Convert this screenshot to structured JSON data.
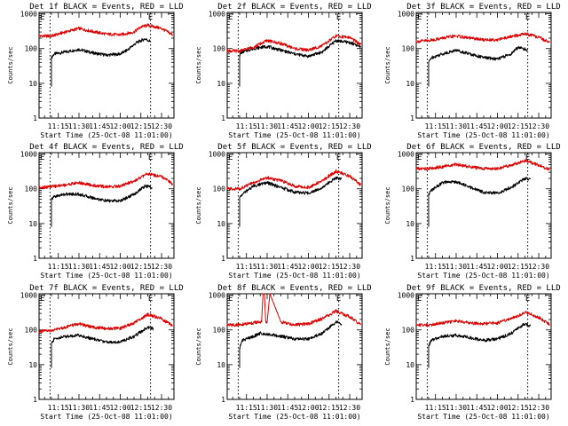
{
  "chart_data": [
    {
      "type": "line",
      "title": "Det 1f BLACK = Events, RED = LLD",
      "xlabel": "Start Time (25-Oct-08 11:01:00)",
      "ylabel": "Counts/sec",
      "x_ticklabels": [
        "11:15",
        "11:30",
        "11:45",
        "12:00",
        "12:15",
        "12:30"
      ],
      "y_ticklabels": [
        "1",
        "10",
        "100",
        "1000"
      ],
      "ylog": true,
      "ylim": [
        1,
        1100
      ],
      "xlim": [
        "11:01",
        "12:39"
      ],
      "vlines": [
        "11:09",
        "12:22"
      ],
      "markers": [
        "E",
        "E"
      ],
      "colors": {
        "events": "#000000",
        "lld": "#e00000"
      },
      "series": [
        {
          "key": "events",
          "x": [
            "11:10",
            "11:12",
            "11:20",
            "11:30",
            "11:40",
            "11:50",
            "12:00",
            "12:05",
            "12:12",
            "12:18",
            "12:22"
          ],
          "values": [
            55,
            70,
            80,
            95,
            75,
            65,
            70,
            90,
            150,
            190,
            160
          ]
        },
        {
          "key": "lld",
          "x": [
            "11:01",
            "11:10",
            "11:20",
            "11:30",
            "11:40",
            "11:50",
            "12:00",
            "12:10",
            "12:15",
            "12:20",
            "12:30",
            "12:38"
          ],
          "values": [
            230,
            230,
            300,
            380,
            310,
            260,
            250,
            300,
            420,
            470,
            380,
            250
          ]
        }
      ]
    },
    {
      "type": "line",
      "title": "Det 2f BLACK = Events, RED = LLD",
      "xlabel": "Start Time (25-Oct-08 11:01:00)",
      "ylabel": "Counts/sec",
      "x_ticklabels": [
        "11:15",
        "11:30",
        "11:45",
        "12:00",
        "12:15",
        "12:30"
      ],
      "y_ticklabels": [
        "1",
        "10",
        "100",
        "1000"
      ],
      "ylog": true,
      "ylim": [
        1,
        1100
      ],
      "xlim": [
        "11:01",
        "12:39"
      ],
      "vlines": [
        "11:09",
        "12:22"
      ],
      "markers": [
        "E",
        "E"
      ],
      "colors": {
        "events": "#000000",
        "lld": "#e00000"
      },
      "series": [
        {
          "key": "events",
          "x": [
            "11:10",
            "11:12",
            "11:20",
            "11:30",
            "11:40",
            "11:50",
            "12:00",
            "12:10",
            "12:20",
            "12:30",
            "12:38"
          ],
          "values": [
            65,
            80,
            100,
            115,
            90,
            70,
            60,
            80,
            170,
            150,
            110
          ]
        },
        {
          "key": "lld",
          "x": [
            "11:01",
            "11:10",
            "11:20",
            "11:30",
            "11:40",
            "11:50",
            "12:00",
            "12:10",
            "12:20",
            "12:30",
            "12:38"
          ],
          "values": [
            85,
            85,
            110,
            170,
            140,
            100,
            90,
            120,
            230,
            210,
            130
          ]
        }
      ]
    },
    {
      "type": "line",
      "title": "Det 3f BLACK = Events, RED = LLD",
      "xlabel": "Start Time (25-Oct-08 11:01:00)",
      "ylabel": "Counts/sec",
      "x_ticklabels": [
        "11:15",
        "11:30",
        "11:45",
        "12:00",
        "12:15",
        "12:30"
      ],
      "y_ticklabels": [
        "1",
        "10",
        "100",
        "1000"
      ],
      "ylog": true,
      "ylim": [
        1,
        1100
      ],
      "xlim": [
        "11:01",
        "12:39"
      ],
      "vlines": [
        "11:09",
        "12:22"
      ],
      "markers": [
        "E",
        "E"
      ],
      "colors": {
        "events": "#000000",
        "lld": "#e00000"
      },
      "series": [
        {
          "key": "events",
          "x": [
            "11:10",
            "11:12",
            "11:20",
            "11:30",
            "11:40",
            "11:50",
            "12:00",
            "12:10",
            "12:15",
            "12:22"
          ],
          "values": [
            40,
            55,
            70,
            90,
            70,
            55,
            50,
            70,
            110,
            90
          ]
        },
        {
          "key": "lld",
          "x": [
            "11:01",
            "11:10",
            "11:20",
            "11:30",
            "11:40",
            "11:50",
            "12:00",
            "12:10",
            "12:20",
            "12:30",
            "12:38"
          ],
          "values": [
            160,
            170,
            200,
            230,
            200,
            180,
            180,
            220,
            270,
            210,
            150
          ]
        }
      ]
    },
    {
      "type": "line",
      "title": "Det 4f BLACK = Events, RED = LLD",
      "xlabel": "Start Time (25-Oct-08 11:01:00)",
      "ylabel": "Counts/sec",
      "x_ticklabels": [
        "11:15",
        "11:30",
        "11:45",
        "12:00",
        "12:15",
        "12:30"
      ],
      "y_ticklabels": [
        "1",
        "10",
        "100",
        "1000"
      ],
      "ylog": true,
      "ylim": [
        1,
        1100
      ],
      "xlim": [
        "11:01",
        "12:39"
      ],
      "vlines": [
        "11:09",
        "12:22"
      ],
      "markers": [
        "E",
        "E"
      ],
      "colors": {
        "events": "#000000",
        "lld": "#e00000"
      },
      "series": [
        {
          "key": "events",
          "x": [
            "11:10",
            "11:12",
            "11:20",
            "11:30",
            "11:40",
            "11:50",
            "12:00",
            "12:10",
            "12:18",
            "12:23"
          ],
          "values": [
            50,
            60,
            70,
            70,
            55,
            45,
            45,
            70,
            120,
            110
          ]
        },
        {
          "key": "lld",
          "x": [
            "11:01",
            "11:10",
            "11:20",
            "11:30",
            "11:40",
            "11:50",
            "12:00",
            "12:10",
            "12:20",
            "12:30",
            "12:38"
          ],
          "values": [
            110,
            115,
            130,
            150,
            125,
            115,
            120,
            170,
            270,
            220,
            140
          ]
        }
      ]
    },
    {
      "type": "line",
      "title": "Det 5f BLACK = Events, RED = LLD",
      "xlabel": "Start Time (25-Oct-08 11:01:00)",
      "ylabel": "Counts/sec",
      "x_ticklabels": [
        "11:15",
        "11:30",
        "11:45",
        "12:00",
        "12:15",
        "12:30"
      ],
      "y_ticklabels": [
        "1",
        "10",
        "100",
        "1000"
      ],
      "ylog": true,
      "ylim": [
        1,
        1100
      ],
      "xlim": [
        "11:01",
        "12:39"
      ],
      "vlines": [
        "11:09",
        "12:22"
      ],
      "markers": [
        "E",
        "E"
      ],
      "colors": {
        "events": "#000000",
        "lld": "#e00000"
      },
      "series": [
        {
          "key": "events",
          "x": [
            "11:10",
            "11:12",
            "11:20",
            "11:30",
            "11:40",
            "11:50",
            "12:00",
            "12:10",
            "12:20",
            "12:24"
          ],
          "values": [
            55,
            70,
            120,
            150,
            110,
            80,
            75,
            110,
            210,
            190
          ]
        },
        {
          "key": "lld",
          "x": [
            "11:01",
            "11:10",
            "11:20",
            "11:30",
            "11:40",
            "11:50",
            "12:00",
            "12:10",
            "12:20",
            "12:30",
            "12:38"
          ],
          "values": [
            100,
            100,
            150,
            210,
            170,
            120,
            110,
            170,
            320,
            230,
            130
          ]
        }
      ]
    },
    {
      "type": "line",
      "title": "Det 6f BLACK = Events, RED = LLD",
      "xlabel": "Start Time (25-Oct-08 11:01:00)",
      "ylabel": "Counts/sec",
      "x_ticklabels": [
        "11:15",
        "11:30",
        "11:45",
        "12:00",
        "12:15",
        "12:30"
      ],
      "y_ticklabels": [
        "1",
        "10",
        "100",
        "1000"
      ],
      "ylog": true,
      "ylim": [
        1,
        1100
      ],
      "xlim": [
        "11:01",
        "12:39"
      ],
      "vlines": [
        "11:09",
        "12:22"
      ],
      "markers": [
        "E",
        "E"
      ],
      "colors": {
        "events": "#000000",
        "lld": "#e00000"
      },
      "series": [
        {
          "key": "events",
          "x": [
            "11:10",
            "11:12",
            "11:20",
            "11:30",
            "11:40",
            "11:50",
            "12:00",
            "12:10",
            "12:20",
            "12:24"
          ],
          "values": [
            70,
            90,
            150,
            160,
            110,
            80,
            75,
            110,
            200,
            190
          ]
        },
        {
          "key": "lld",
          "x": [
            "11:01",
            "11:10",
            "11:20",
            "11:30",
            "11:40",
            "11:50",
            "12:00",
            "12:10",
            "12:20",
            "12:30",
            "12:38"
          ],
          "values": [
            380,
            380,
            430,
            500,
            430,
            380,
            380,
            480,
            650,
            480,
            350
          ]
        }
      ]
    },
    {
      "type": "line",
      "title": "Det 7f BLACK = Events, RED = LLD",
      "xlabel": "Start Time (25-Oct-08 11:01:00)",
      "ylabel": "Counts/sec",
      "x_ticklabels": [
        "11:15",
        "11:30",
        "11:45",
        "12:00",
        "12:15",
        "12:30"
      ],
      "y_ticklabels": [
        "1",
        "10",
        "100",
        "1000"
      ],
      "ylog": true,
      "ylim": [
        1,
        1100
      ],
      "xlim": [
        "11:01",
        "12:39"
      ],
      "vlines": [
        "11:09",
        "12:22"
      ],
      "markers": [
        "E",
        "E"
      ],
      "colors": {
        "events": "#000000",
        "lld": "#e00000"
      },
      "series": [
        {
          "key": "events",
          "x": [
            "11:10",
            "11:12",
            "11:20",
            "11:30",
            "11:40",
            "11:50",
            "12:00",
            "12:10",
            "12:20",
            "12:24"
          ],
          "values": [
            40,
            55,
            65,
            70,
            55,
            45,
            45,
            65,
            120,
            110
          ]
        },
        {
          "key": "lld",
          "x": [
            "11:01",
            "11:10",
            "11:20",
            "11:30",
            "11:40",
            "11:50",
            "12:00",
            "12:10",
            "12:20",
            "12:30",
            "12:38"
          ],
          "values": [
            90,
            95,
            120,
            150,
            120,
            110,
            110,
            160,
            280,
            210,
            130
          ]
        }
      ]
    },
    {
      "type": "line",
      "title": "Det 8f BLACK = Events, RED = LLD",
      "xlabel": "Start Time (25-Oct-08 11:01:00)",
      "ylabel": "Counts/sec",
      "x_ticklabels": [
        "11:15",
        "11:30",
        "11:45",
        "12:00",
        "12:15",
        "12:30"
      ],
      "y_ticklabels": [
        "1",
        "10",
        "100",
        "1000"
      ],
      "ylog": true,
      "ylim": [
        1,
        1100
      ],
      "xlim": [
        "11:01",
        "12:39"
      ],
      "vlines": [
        "11:09",
        "12:22"
      ],
      "markers": [
        "E",
        "E"
      ],
      "colors": {
        "events": "#000000",
        "lld": "#e00000"
      },
      "series": [
        {
          "key": "events",
          "x": [
            "11:10",
            "11:12",
            "11:20",
            "11:25",
            "11:32",
            "11:40",
            "11:50",
            "12:00",
            "12:10",
            "12:20",
            "12:24"
          ],
          "values": [
            30,
            50,
            65,
            80,
            75,
            65,
            55,
            55,
            80,
            170,
            150
          ]
        },
        {
          "key": "lld",
          "x": [
            "11:01",
            "11:10",
            "11:20",
            "11:26",
            "11:27",
            "11:28",
            "11:29",
            "11:30",
            "11:32",
            "11:40",
            "11:50",
            "12:00",
            "12:10",
            "12:20",
            "12:30",
            "12:38"
          ],
          "values": [
            140,
            140,
            160,
            170,
            1100,
            1100,
            170,
            170,
            1100,
            170,
            140,
            150,
            210,
            350,
            240,
            140
          ]
        }
      ]
    },
    {
      "type": "line",
      "title": "Det 9f BLACK = Events, RED = LLD",
      "xlabel": "Start Time (25-Oct-08 11:01:00)",
      "ylabel": "Counts/sec",
      "x_ticklabels": [
        "11:15",
        "11:30",
        "11:45",
        "12:00",
        "12:15",
        "12:30"
      ],
      "y_ticklabels": [
        "1",
        "10",
        "100",
        "1000"
      ],
      "ylog": true,
      "ylim": [
        1,
        1100
      ],
      "xlim": [
        "11:01",
        "12:39"
      ],
      "vlines": [
        "11:09",
        "12:22"
      ],
      "markers": [
        "E",
        "E"
      ],
      "colors": {
        "events": "#000000",
        "lld": "#e00000"
      },
      "series": [
        {
          "key": "events",
          "x": [
            "11:10",
            "11:12",
            "11:20",
            "11:30",
            "11:40",
            "11:50",
            "12:00",
            "12:10",
            "12:20",
            "12:24"
          ],
          "values": [
            35,
            50,
            65,
            70,
            60,
            50,
            55,
            80,
            150,
            130
          ]
        },
        {
          "key": "lld",
          "x": [
            "11:01",
            "11:10",
            "11:20",
            "11:30",
            "11:40",
            "11:50",
            "12:00",
            "12:10",
            "12:20",
            "12:30",
            "12:38"
          ],
          "values": [
            140,
            140,
            160,
            180,
            160,
            150,
            160,
            210,
            320,
            230,
            140
          ]
        }
      ]
    }
  ]
}
